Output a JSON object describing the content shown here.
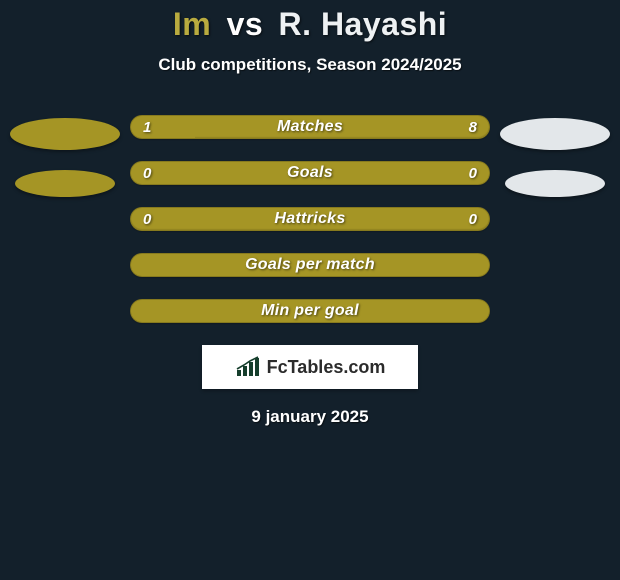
{
  "colors": {
    "background": "#13202b",
    "player1": "#a59525",
    "player2": "#e3e7ea",
    "title_p1": "#b9ab3f",
    "title_vs": "#ffffff",
    "title_p2": "#eef1f3",
    "bar_track": "#a59525",
    "brand_graph": "#163e2c"
  },
  "header": {
    "p1": "Im",
    "vs": "vs",
    "p2": "R. Hayashi",
    "subtitle": "Club competitions, Season 2024/2025"
  },
  "side": {
    "ellipse_big_w": 110,
    "ellipse_big_h": 32,
    "ellipse_small_w": 100,
    "ellipse_small_h": 27
  },
  "bars": [
    {
      "label": "Matches",
      "left": "1",
      "right": "8",
      "left_pct": 18,
      "show_vals": true
    },
    {
      "label": "Goals",
      "left": "0",
      "right": "0",
      "left_pct": 100,
      "show_vals": true
    },
    {
      "label": "Hattricks",
      "left": "0",
      "right": "0",
      "left_pct": 0,
      "show_vals": true
    },
    {
      "label": "Goals per match",
      "left": "",
      "right": "",
      "left_pct": 100,
      "show_vals": false
    },
    {
      "label": "Min per goal",
      "left": "",
      "right": "",
      "left_pct": 100,
      "show_vals": false
    }
  ],
  "brand": {
    "text": "FcTables.com"
  },
  "date": "9 january 2025",
  "typography": {
    "title_fontsize": 32,
    "subtitle_fontsize": 17,
    "bar_label_fontsize": 16,
    "bar_value_fontsize": 15,
    "brand_fontsize": 18,
    "date_fontsize": 17
  }
}
